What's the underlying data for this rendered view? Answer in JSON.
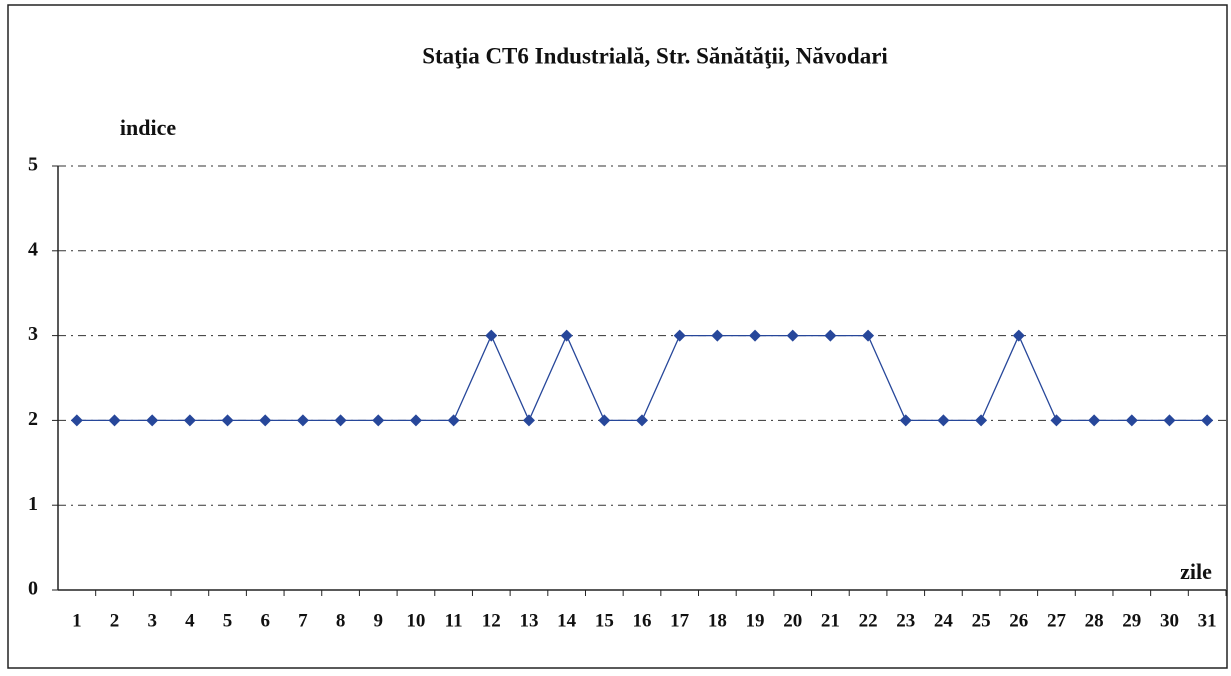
{
  "chart_data": {
    "type": "line",
    "title": "Staţia CT6 Industrială,  Str. Sănătăţii, Năvodari",
    "y_label": "indice",
    "x_label": "zile",
    "categories": [
      1,
      2,
      3,
      4,
      5,
      6,
      7,
      8,
      9,
      10,
      11,
      12,
      13,
      14,
      15,
      16,
      17,
      18,
      19,
      20,
      21,
      22,
      23,
      24,
      25,
      26,
      27,
      28,
      29,
      30,
      31
    ],
    "series": [
      {
        "name": "indice",
        "color": "#27479a",
        "values": [
          2,
          2,
          2,
          2,
          2,
          2,
          2,
          2,
          2,
          2,
          2,
          3,
          2,
          3,
          2,
          2,
          3,
          3,
          3,
          3,
          3,
          3,
          2,
          2,
          2,
          3,
          2,
          2,
          2,
          2,
          2
        ]
      }
    ],
    "ylim": [
      0,
      5
    ],
    "yticks": [
      0,
      1,
      2,
      3,
      4,
      5
    ],
    "grid": true
  }
}
